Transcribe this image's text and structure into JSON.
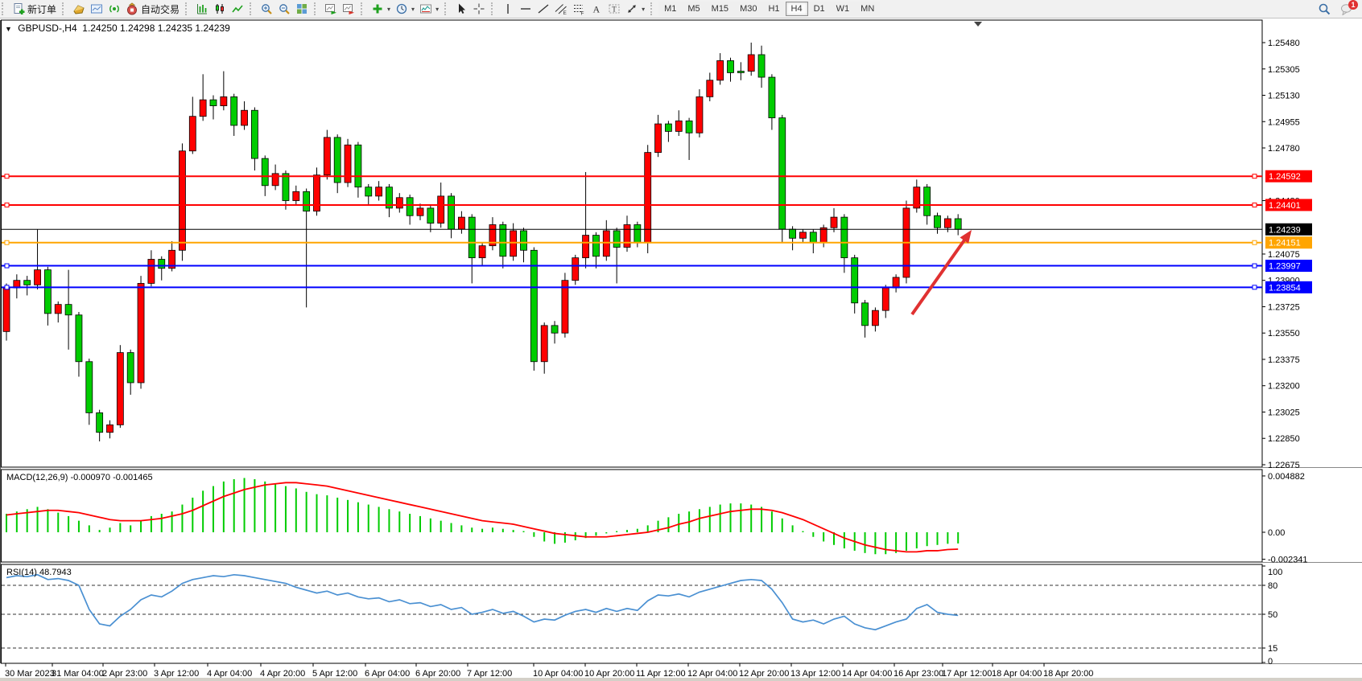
{
  "toolbar": {
    "new_order_label": "新订单",
    "autotrade_label": "自动交易",
    "groups": [
      [
        {
          "name": "new-order",
          "icon": "doc-plus-icon",
          "label": "新订单"
        }
      ],
      [
        {
          "name": "market-watch",
          "icon": "gold-cube-icon"
        },
        {
          "name": "chart-window",
          "icon": "chart-window-icon"
        },
        {
          "name": "signal",
          "icon": "signal-icon"
        },
        {
          "name": "autotrade",
          "icon": "autotrade-icon",
          "label": "自动交易"
        }
      ],
      [
        {
          "name": "bar-chart-mode",
          "icon": "bar-chart-icon"
        },
        {
          "name": "candlestick-mode",
          "icon": "candlestick-icon"
        },
        {
          "name": "line-chart-mode",
          "icon": "line-chart-icon"
        }
      ],
      [
        {
          "name": "zoom-in",
          "icon": "zoom-in-icon"
        },
        {
          "name": "zoom-out",
          "icon": "zoom-out-icon"
        },
        {
          "name": "tile-windows",
          "icon": "tile-windows-icon"
        }
      ],
      [
        {
          "name": "auto-scroll",
          "icon": "autoscroll-icon"
        },
        {
          "name": "chart-shift",
          "icon": "chart-shift-icon"
        }
      ],
      [
        {
          "name": "indicators",
          "icon": "indicators-icon",
          "caret": true
        },
        {
          "name": "periods",
          "icon": "clock-icon",
          "caret": true
        },
        {
          "name": "templates",
          "icon": "templates-icon",
          "caret": true
        }
      ],
      [
        {
          "name": "cursor",
          "icon": "cursor-icon"
        },
        {
          "name": "crosshair",
          "icon": "crosshair-icon"
        }
      ],
      [
        {
          "name": "vertical-line",
          "icon": "vline-icon"
        },
        {
          "name": "horizontal-line",
          "icon": "hline-icon"
        },
        {
          "name": "trend-line",
          "icon": "trendline-icon"
        },
        {
          "name": "equidistant-channel",
          "icon": "channel-icon"
        },
        {
          "name": "fibonacci",
          "icon": "fibonacci-icon"
        },
        {
          "name": "text",
          "icon": "text-a-icon"
        },
        {
          "name": "text-label",
          "icon": "text-label-icon"
        },
        {
          "name": "arrows",
          "icon": "arrows-icon",
          "caret": true
        }
      ]
    ],
    "timeframes": [
      "M1",
      "M5",
      "M15",
      "M30",
      "H1",
      "H4",
      "D1",
      "W1",
      "MN"
    ],
    "active_timeframe": "H4",
    "search_icon": "search-icon",
    "chat_icon": "chat-icon",
    "chat_badge": "1"
  },
  "chart": {
    "title_symbol": "GBPUSD-,H4",
    "title_ohlc": "1.24250 1.24298 1.24235 1.24239",
    "macd_label": "MACD(12,26,9) -0.000970 -0.001465",
    "rsi_label": "RSI(14) 48.7943"
  },
  "chart_data": {
    "type": "candlestick",
    "symbol": "GBPUSD-",
    "timeframe": "H4",
    "current_bar": {
      "open": 1.2425,
      "high": 1.24298,
      "low": 1.24235,
      "close": 1.24239
    },
    "up_color": "#ff0000",
    "down_color": "#00cc00",
    "y_range": {
      "min": 1.22675,
      "max": 1.2548
    },
    "y_ticks": [
      1.2548,
      1.25305,
      1.2513,
      1.24955,
      1.2478,
      1.2443,
      1.24075,
      1.239,
      1.23725,
      1.2355,
      1.23375,
      1.232,
      1.23025,
      1.2285,
      1.22675
    ],
    "price_lines": [
      {
        "price": 1.24592,
        "label": "1.24592",
        "color": "#ff0000",
        "type": "resistance"
      },
      {
        "price": 1.24401,
        "label": "1.24401",
        "color": "#ff0000",
        "type": "resistance"
      },
      {
        "price": 1.24239,
        "label": "1.24239",
        "color": "#000000",
        "type": "current-price"
      },
      {
        "price": 1.24151,
        "label": "1.24151",
        "color": "#ffa500",
        "type": "pivot"
      },
      {
        "price": 1.23997,
        "label": "1.23997",
        "color": "#0000ff",
        "type": "support"
      },
      {
        "price": 1.23854,
        "label": "1.23854",
        "color": "#0000ff",
        "type": "support"
      }
    ],
    "x_labels": [
      {
        "text": "30 Mar 2023",
        "x": 6
      },
      {
        "text": "31 Mar 04:00",
        "x": 64
      },
      {
        "text": "2 Apr 23:00",
        "x": 127
      },
      {
        "text": "3 Apr 12:00",
        "x": 191
      },
      {
        "text": "4 Apr 04:00",
        "x": 257
      },
      {
        "text": "4 Apr 20:00",
        "x": 323
      },
      {
        "text": "5 Apr 12:00",
        "x": 388
      },
      {
        "text": "6 Apr 04:00",
        "x": 453
      },
      {
        "text": "6 Apr 20:00",
        "x": 516
      },
      {
        "text": "7 Apr 12:00",
        "x": 580
      },
      {
        "text": "10 Apr 04:00",
        "x": 662
      },
      {
        "text": "10 Apr 20:00",
        "x": 726
      },
      {
        "text": "11 Apr 12:00",
        "x": 790
      },
      {
        "text": "12 Apr 04:00",
        "x": 854
      },
      {
        "text": "12 Apr 20:00",
        "x": 918
      },
      {
        "text": "13 Apr 12:00",
        "x": 982
      },
      {
        "text": "14 Apr 04:00",
        "x": 1046
      },
      {
        "text": "16 Apr 23:00",
        "x": 1110
      },
      {
        "text": "17 Apr 12:00",
        "x": 1170
      },
      {
        "text": "18 Apr 04:00",
        "x": 1232
      },
      {
        "text": "18 Apr 20:00",
        "x": 1296
      }
    ],
    "candles": [
      [
        1.2356,
        1.2388,
        1.235,
        1.2385
      ],
      [
        1.2385,
        1.2394,
        1.2378,
        1.239
      ],
      [
        1.239,
        1.2393,
        1.238,
        1.2387
      ],
      [
        1.2387,
        1.2424,
        1.2384,
        1.2397
      ],
      [
        1.2397,
        1.2399,
        1.236,
        1.2368
      ],
      [
        1.2368,
        1.2376,
        1.2362,
        1.2374
      ],
      [
        1.2374,
        1.2397,
        1.2344,
        1.2367
      ],
      [
        1.2367,
        1.2369,
        1.2326,
        1.2336
      ],
      [
        1.2336,
        1.2338,
        1.2294,
        1.2302
      ],
      [
        1.2302,
        1.2304,
        1.2283,
        1.2289
      ],
      [
        1.2289,
        1.2297,
        1.2285,
        1.2294
      ],
      [
        1.2294,
        1.2347,
        1.2292,
        1.2342
      ],
      [
        1.2342,
        1.2344,
        1.2314,
        1.2322
      ],
      [
        1.2322,
        1.2393,
        1.2318,
        1.2388
      ],
      [
        1.2388,
        1.241,
        1.2386,
        1.2404
      ],
      [
        1.2404,
        1.2406,
        1.239,
        1.2398
      ],
      [
        1.2398,
        1.2416,
        1.2396,
        1.241
      ],
      [
        1.241,
        1.2481,
        1.2403,
        1.2476
      ],
      [
        1.2476,
        1.2512,
        1.2474,
        1.2499
      ],
      [
        1.2499,
        1.2527,
        1.2496,
        1.251
      ],
      [
        1.251,
        1.2513,
        1.2497,
        1.2506
      ],
      [
        1.2506,
        1.2529,
        1.2503,
        1.2512
      ],
      [
        1.2512,
        1.2514,
        1.2486,
        1.2493
      ],
      [
        1.2493,
        1.2509,
        1.249,
        1.2503
      ],
      [
        1.2503,
        1.2505,
        1.2463,
        1.2471
      ],
      [
        1.2471,
        1.2473,
        1.2446,
        1.2453
      ],
      [
        1.2453,
        1.2467,
        1.245,
        1.2461
      ],
      [
        1.2461,
        1.2463,
        1.2437,
        1.2443
      ],
      [
        1.2443,
        1.2453,
        1.244,
        1.2449
      ],
      [
        1.2449,
        1.2451,
        1.2372,
        1.2436
      ],
      [
        1.2436,
        1.2465,
        1.2433,
        1.246
      ],
      [
        1.246,
        1.249,
        1.2457,
        1.2485
      ],
      [
        1.2485,
        1.2487,
        1.2448,
        1.2455
      ],
      [
        1.2455,
        1.2484,
        1.2452,
        1.248
      ],
      [
        1.248,
        1.2482,
        1.2445,
        1.2452
      ],
      [
        1.2452,
        1.2454,
        1.244,
        1.2446
      ],
      [
        1.2446,
        1.2456,
        1.2443,
        1.2452
      ],
      [
        1.2452,
        1.2454,
        1.2432,
        1.2438
      ],
      [
        1.2438,
        1.2448,
        1.2435,
        1.2445
      ],
      [
        1.2445,
        1.2447,
        1.2427,
        1.2433
      ],
      [
        1.2433,
        1.2441,
        1.243,
        1.2438
      ],
      [
        1.2438,
        1.244,
        1.2422,
        1.2428
      ],
      [
        1.2428,
        1.2455,
        1.2425,
        1.2446
      ],
      [
        1.2446,
        1.2448,
        1.2418,
        1.2424
      ],
      [
        1.2424,
        1.2436,
        1.2421,
        1.2432
      ],
      [
        1.2432,
        1.2434,
        1.2388,
        1.2405
      ],
      [
        1.2405,
        1.2415,
        1.24,
        1.2413
      ],
      [
        1.2413,
        1.2432,
        1.241,
        1.2427
      ],
      [
        1.2427,
        1.2429,
        1.2398,
        1.2406
      ],
      [
        1.2406,
        1.2428,
        1.2403,
        1.2423
      ],
      [
        1.2423,
        1.2425,
        1.2402,
        1.241
      ],
      [
        1.241,
        1.2412,
        1.233,
        1.2336
      ],
      [
        1.2336,
        1.2362,
        1.2328,
        1.236
      ],
      [
        1.236,
        1.2363,
        1.2348,
        1.2355
      ],
      [
        1.2355,
        1.2395,
        1.2352,
        1.239
      ],
      [
        1.239,
        1.2407,
        1.2387,
        1.2405
      ],
      [
        1.2405,
        1.2462,
        1.2398,
        1.242
      ],
      [
        1.242,
        1.2422,
        1.2398,
        1.2406
      ],
      [
        1.2406,
        1.243,
        1.2403,
        1.2423
      ],
      [
        1.2423,
        1.2425,
        1.2388,
        1.2412
      ],
      [
        1.2412,
        1.2433,
        1.2409,
        1.2427
      ],
      [
        1.2427,
        1.2429,
        1.2412,
        1.2415
      ],
      [
        1.2415,
        1.248,
        1.2408,
        1.2475
      ],
      [
        1.2475,
        1.25,
        1.2472,
        1.2494
      ],
      [
        1.2494,
        1.2496,
        1.2482,
        1.2489
      ],
      [
        1.2489,
        1.2503,
        1.2486,
        1.2496
      ],
      [
        1.2496,
        1.2498,
        1.247,
        1.2488
      ],
      [
        1.2488,
        1.2517,
        1.2485,
        1.2512
      ],
      [
        1.2512,
        1.2528,
        1.2509,
        1.2523
      ],
      [
        1.2523,
        1.2541,
        1.252,
        1.2536
      ],
      [
        1.2536,
        1.2538,
        1.2522,
        1.2528
      ],
      [
        1.2529,
        1.2535,
        1.2523,
        1.2528
      ],
      [
        1.2529,
        1.2548,
        1.2526,
        1.254
      ],
      [
        1.254,
        1.2546,
        1.2518,
        1.2525
      ],
      [
        1.2525,
        1.2527,
        1.249,
        1.2498
      ],
      [
        1.2498,
        1.25,
        1.2415,
        1.2424
      ],
      [
        1.2424,
        1.2426,
        1.241,
        1.2418
      ],
      [
        1.2418,
        1.2424,
        1.2415,
        1.2422
      ],
      [
        1.2422,
        1.2424,
        1.2408,
        1.2415
      ],
      [
        1.2415,
        1.2427,
        1.2412,
        1.2425
      ],
      [
        1.2425,
        1.2438,
        1.2422,
        1.2432
      ],
      [
        1.2432,
        1.2434,
        1.2395,
        1.2405
      ],
      [
        1.2405,
        1.2407,
        1.2368,
        1.2375
      ],
      [
        1.2375,
        1.2377,
        1.2352,
        1.236
      ],
      [
        1.236,
        1.2372,
        1.2356,
        1.237
      ],
      [
        1.237,
        1.2387,
        1.2365,
        1.2385
      ],
      [
        1.2385,
        1.2394,
        1.2382,
        1.2392
      ],
      [
        1.2392,
        1.2443,
        1.2388,
        1.2438
      ],
      [
        1.2438,
        1.2457,
        1.2435,
        1.2452
      ],
      [
        1.2452,
        1.2454,
        1.2427,
        1.2433
      ],
      [
        1.2433,
        1.2435,
        1.2421,
        1.2425
      ],
      [
        1.2425,
        1.2433,
        1.2422,
        1.2431
      ],
      [
        1.2431,
        1.2434,
        1.242,
        1.24239
      ]
    ],
    "macd": {
      "label": "MACD(12,26,9) -0.000970 -0.001465",
      "params": "12,26,9",
      "main_value": -0.00097,
      "signal_value": -0.001465,
      "axis_ticks": [
        0.004882,
        0.0,
        -0.002341
      ],
      "hist_color": "#00cc00",
      "signal_color": "#ff0000",
      "histogram": [
        0.0016,
        0.0018,
        0.002,
        0.0022,
        0.002,
        0.0017,
        0.0014,
        0.001,
        0.0006,
        0.0002,
        0.0004,
        0.0008,
        0.0006,
        0.001,
        0.0014,
        0.0016,
        0.0018,
        0.0024,
        0.003,
        0.0036,
        0.004,
        0.0044,
        0.0046,
        0.0047,
        0.0046,
        0.0044,
        0.0042,
        0.004,
        0.0038,
        0.0035,
        0.0033,
        0.0032,
        0.003,
        0.0028,
        0.0026,
        0.0024,
        0.0022,
        0.002,
        0.0018,
        0.0016,
        0.0014,
        0.0012,
        0.001,
        0.0008,
        0.0006,
        0.0004,
        0.0003,
        0.0004,
        0.0003,
        0.0002,
        0.0001,
        -0.0004,
        -0.0008,
        -0.001,
        -0.0009,
        -0.0007,
        -0.0005,
        -0.0003,
        -0.0001,
        0.0001,
        0.0002,
        0.0003,
        0.0006,
        0.001,
        0.0013,
        0.0016,
        0.0018,
        0.002,
        0.0022,
        0.0024,
        0.0025,
        0.0025,
        0.0024,
        0.0022,
        0.0018,
        0.0012,
        0.0006,
        0.0001,
        -0.0004,
        -0.0008,
        -0.0011,
        -0.0014,
        -0.0016,
        -0.0018,
        -0.0019,
        -0.0019,
        -0.0018,
        -0.0016,
        -0.0014,
        -0.0012,
        -0.0011,
        -0.001,
        -0.00097
      ],
      "signal": [
        0.0015,
        0.0016,
        0.0017,
        0.0018,
        0.0019,
        0.0019,
        0.0018,
        0.0017,
        0.0015,
        0.0013,
        0.0011,
        0.001,
        0.001,
        0.001,
        0.0011,
        0.0012,
        0.0014,
        0.0016,
        0.0019,
        0.0023,
        0.0027,
        0.0031,
        0.0034,
        0.0037,
        0.0039,
        0.0041,
        0.0042,
        0.0043,
        0.0043,
        0.0042,
        0.0041,
        0.004,
        0.0038,
        0.0036,
        0.0034,
        0.0032,
        0.003,
        0.0028,
        0.0026,
        0.0024,
        0.0022,
        0.002,
        0.0018,
        0.0016,
        0.0014,
        0.0012,
        0.001,
        0.0009,
        0.0008,
        0.0007,
        0.0005,
        0.0003,
        0.0001,
        -0.0001,
        -0.0002,
        -0.0003,
        -0.0004,
        -0.0004,
        -0.0004,
        -0.0003,
        -0.0002,
        -0.0001,
        0.0,
        0.0002,
        0.0004,
        0.0007,
        0.0009,
        0.0012,
        0.0014,
        0.0016,
        0.0018,
        0.0019,
        0.002,
        0.002,
        0.0019,
        0.0017,
        0.0014,
        0.0011,
        0.0007,
        0.0003,
        -0.0001,
        -0.0005,
        -0.0008,
        -0.0011,
        -0.0013,
        -0.0015,
        -0.0016,
        -0.0017,
        -0.0017,
        -0.0016,
        -0.0016,
        -0.0015,
        -0.001465
      ]
    },
    "rsi": {
      "label": "RSI(14) 48.7943",
      "period": 14,
      "value": 48.7943,
      "levels": [
        80,
        50,
        15
      ],
      "axis_ticks": [
        100,
        80,
        50,
        15,
        0
      ],
      "color": "#4a90d2",
      "values": [
        88,
        90,
        89,
        91,
        86,
        87,
        85,
        80,
        55,
        40,
        38,
        48,
        55,
        65,
        70,
        68,
        74,
        82,
        86,
        88,
        90,
        89,
        91,
        90,
        88,
        86,
        84,
        82,
        78,
        75,
        72,
        74,
        70,
        72,
        68,
        66,
        67,
        63,
        65,
        61,
        62,
        58,
        60,
        55,
        57,
        50,
        52,
        55,
        51,
        53,
        48,
        42,
        45,
        44,
        49,
        53,
        55,
        52,
        56,
        53,
        56,
        54,
        64,
        70,
        69,
        71,
        68,
        73,
        76,
        79,
        82,
        85,
        86,
        85,
        76,
        62,
        45,
        42,
        44,
        40,
        45,
        48,
        40,
        36,
        34,
        38,
        42,
        45,
        56,
        60,
        52,
        50,
        48.79
      ]
    },
    "annotations": [
      {
        "type": "arrow",
        "from": [
          1133,
          368
        ],
        "to": [
          1207,
          263
        ],
        "color": "#e03131"
      }
    ]
  }
}
